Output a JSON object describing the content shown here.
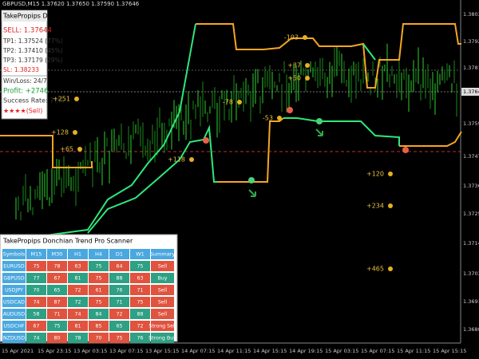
{
  "header": {
    "symbol": "GBPUSD,M15 1.37620 1.37650 1.37590 1.37646"
  },
  "dashboard": {
    "title": "TakePropips Dashbo",
    "signal": "SELL: 1.37644",
    "tp1": "TP1: 1.37524 (77%)",
    "tp2": "TP2: 1.37410 (45%)",
    "tp3": "TP3: 1.37179 (29%)",
    "sl": "SL: 1.38233",
    "win_loss": "Win/Loss: 24/7",
    "profit": "Profit: +2746",
    "success_rate": "Success Rate: 77%",
    "rating": "★★★★(Sell)"
  },
  "chart_labels": [
    "+251",
    "+128",
    "+65",
    "+118",
    "-193",
    "+37",
    "+50",
    "-78",
    "-53",
    "+120",
    "+234",
    "+465"
  ],
  "price_axis": [
    "1.38035",
    "1.37920",
    "1.37810",
    "1.37590",
    "1.37475",
    "1.37360",
    "1.37250",
    "1.37140",
    "1.37030",
    "1.36915",
    "1.36805"
  ],
  "current_price": "1.37646",
  "time_axis": [
    "15 Apr 2021",
    "15 Apr 23:15",
    "13 Apr 03:15",
    "13 Apr 07:15",
    "13 Apr 15:15",
    "14 Apr 07:15",
    "14 Apr 11:15",
    "14 Apr 15:15",
    "14 Apr 19:15",
    "15 Apr 03:15",
    "15 Apr 07:15",
    "15 Apr 11:15",
    "15 Apr 15:15"
  ],
  "scanner": {
    "title": "TakePropips Donchian Trend Pro Scanner",
    "columns": [
      "Symbols",
      "M15",
      "M30",
      "H1",
      "H4",
      "D1",
      "W1",
      "Summary"
    ],
    "rows": [
      [
        "EURUSD",
        "75",
        "78",
        "63",
        "75",
        "64",
        "75",
        "Sell"
      ],
      [
        "GBPUSD",
        "77",
        "67",
        "81",
        "75",
        "88",
        "63",
        "Buy"
      ],
      [
        "USDJPY",
        "70",
        "65",
        "72",
        "61",
        "76",
        "71",
        "Sell"
      ],
      [
        "USDCAD",
        "74",
        "87",
        "72",
        "75",
        "71",
        "75",
        "Sell"
      ],
      [
        "AUDUSD",
        "58",
        "71",
        "74",
        "84",
        "72",
        "88",
        "Sell"
      ],
      [
        "USDCHF",
        "67",
        "75",
        "81",
        "85",
        "65",
        "72",
        "Strong Sell"
      ],
      [
        "NZDUSD",
        "74",
        "80",
        "78",
        "70",
        "75",
        "76",
        "Strong Buy"
      ]
    ]
  }
}
